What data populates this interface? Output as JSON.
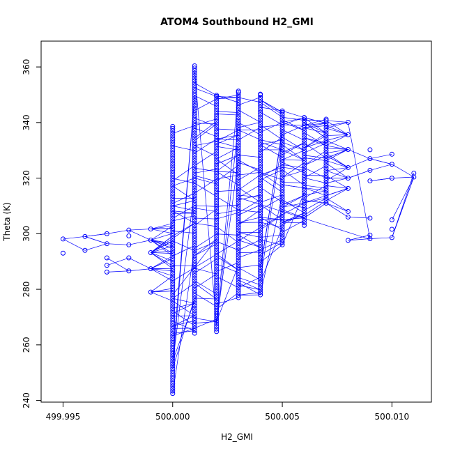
{
  "chart_data": {
    "type": "scatter",
    "title": "ATOM4 Southbound H2_GMI",
    "xlabel": "H2_GMI",
    "ylabel": "Theta (K)",
    "xlim": [
      499.994,
      500.0118
    ],
    "ylim": [
      239.4,
      369.3
    ],
    "x_ticks": [
      499.995,
      500.0,
      500.005,
      500.01
    ],
    "x_tick_labels": [
      "499.995",
      "500.000",
      "500.005",
      "500.010"
    ],
    "y_ticks": [
      240,
      260,
      280,
      300,
      320,
      340,
      360
    ],
    "y_tick_labels": [
      "240",
      "260",
      "280",
      "300",
      "320",
      "340",
      "360"
    ],
    "grid": false,
    "legend": "none",
    "marker": "open-circle",
    "connected": true,
    "color": "#0000ff",
    "columns": [
      {
        "x": 499.995,
        "y": [
          293.0,
          298.1
        ]
      },
      {
        "x": 499.996,
        "y": [
          294.0,
          299.0
        ]
      },
      {
        "x": 499.997,
        "y": [
          286.2,
          288.6,
          291.3,
          296.4,
          300.0
        ]
      },
      {
        "x": 499.998,
        "y": [
          286.6,
          291.3,
          296.0,
          299.2,
          301.3
        ]
      },
      {
        "x": 499.999,
        "y": [
          279.0,
          287.4,
          293.2,
          297.7,
          301.7
        ]
      },
      {
        "x": 500.0,
        "y_range": [
          242.5,
          338.6
        ]
      },
      {
        "x": 500.001,
        "y_range": [
          264.2,
          360.4
        ]
      },
      {
        "x": 500.002,
        "y_range": [
          264.8,
          349.8
        ]
      },
      {
        "x": 500.003,
        "y_range": [
          277.0,
          351.3
        ]
      },
      {
        "x": 500.004,
        "y_range": [
          278.0,
          350.2
        ]
      },
      {
        "x": 500.005,
        "y_range": [
          296.0,
          344.2
        ]
      },
      {
        "x": 500.006,
        "y_range": [
          303.0,
          341.8
        ]
      },
      {
        "x": 500.007,
        "y_range": [
          311.0,
          341.2
        ]
      },
      {
        "x": 500.008,
        "y": [
          297.6,
          306.0,
          308.0,
          316.3,
          320.0,
          323.8,
          330.3,
          335.6,
          340.1
        ]
      },
      {
        "x": 500.009,
        "y": [
          298.2,
          299.5,
          305.6,
          319.0,
          322.8,
          327.0,
          330.2
        ]
      },
      {
        "x": 500.01,
        "y": [
          298.6,
          301.6,
          305.0,
          320.0,
          325.0,
          328.6
        ]
      },
      {
        "x": 500.011,
        "y": [
          320.4,
          321.8
        ]
      }
    ]
  }
}
